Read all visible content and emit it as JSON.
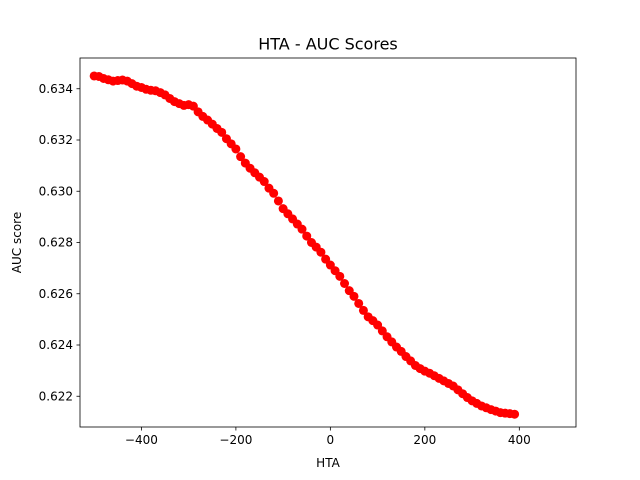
{
  "chart_data": {
    "type": "scatter",
    "title": "HTA  -  AUC Scores",
    "xlabel": "HTA",
    "ylabel": "AUC score",
    "xlim": [
      -530,
      520
    ],
    "ylim": [
      0.6208,
      0.6352
    ],
    "xticks": [
      -400,
      -200,
      0,
      200,
      400
    ],
    "xtick_labels": [
      "−400",
      "−200",
      "0",
      "200",
      "400"
    ],
    "yticks": [
      0.622,
      0.624,
      0.626,
      0.628,
      0.63,
      0.632,
      0.634
    ],
    "ytick_labels": [
      "0.622",
      "0.624",
      "0.626",
      "0.628",
      "0.630",
      "0.632",
      "0.634"
    ],
    "grid": false,
    "legend": "none",
    "marker_color": "#ff0000",
    "series": [
      {
        "x_start": -500,
        "x_step": 10,
        "values": [
          0.6345,
          0.63448,
          0.6344,
          0.63435,
          0.6343,
          0.63432,
          0.63434,
          0.6343,
          0.6342,
          0.6341,
          0.63405,
          0.63398,
          0.63394,
          0.63392,
          0.63385,
          0.63376,
          0.63362,
          0.6335,
          0.63342,
          0.63335,
          0.63338,
          0.63332,
          0.6331,
          0.63292,
          0.63278,
          0.63262,
          0.63245,
          0.6323,
          0.63205,
          0.63185,
          0.63165,
          0.63135,
          0.6311,
          0.6309,
          0.63072,
          0.63055,
          0.63038,
          0.63012,
          0.62992,
          0.62962,
          0.62932,
          0.62912,
          0.62892,
          0.62872,
          0.62852,
          0.62825,
          0.628,
          0.62782,
          0.62762,
          0.62735,
          0.62712,
          0.6269,
          0.62668,
          0.6264,
          0.62612,
          0.6259,
          0.62562,
          0.62535,
          0.6251,
          0.62495,
          0.62478,
          0.62455,
          0.62432,
          0.62412,
          0.62392,
          0.62375,
          0.62355,
          0.62338,
          0.6232,
          0.62308,
          0.62298,
          0.6229,
          0.6228,
          0.6227,
          0.6226,
          0.6225,
          0.6224,
          0.62225,
          0.6221,
          0.62195,
          0.62182,
          0.62172,
          0.62162,
          0.62155,
          0.62148,
          0.62142,
          0.62136,
          0.62134,
          0.62132,
          0.6213
        ]
      }
    ]
  }
}
